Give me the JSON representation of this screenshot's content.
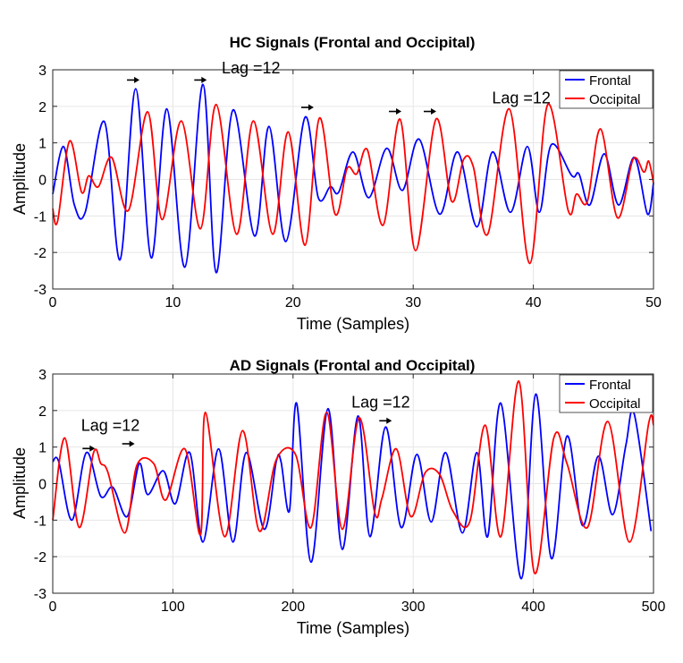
{
  "chart_data": [
    {
      "type": "line",
      "title": "HC Signals (Frontal and Occipital)",
      "xlabel": "Time (Samples)",
      "ylabel": "Amplitude",
      "xlim": [
        0,
        500
      ],
      "ylim": [
        -3,
        3
      ],
      "xticks": [
        0,
        100,
        200,
        300,
        400,
        500
      ],
      "xtick_labels": [
        "0",
        "10",
        "20",
        "30",
        "40",
        "50"
      ],
      "yticks": [
        -3,
        -2,
        -1,
        0,
        1,
        2,
        3
      ],
      "grid": true,
      "legend": "top-right",
      "series": [
        {
          "name": "Frontal",
          "color": "#0000ff",
          "points": [
            [
              0,
              -0.4
            ],
            [
              9,
              0.9
            ],
            [
              18,
              -0.7
            ],
            [
              27,
              -0.9
            ],
            [
              43,
              1.58
            ],
            [
              56,
              -2.2
            ],
            [
              69,
              2.48
            ],
            [
              82,
              -2.15
            ],
            [
              95,
              1.93
            ],
            [
              110,
              -2.4
            ],
            [
              125,
              2.6
            ],
            [
              136,
              -2.55
            ],
            [
              150,
              1.9
            ],
            [
              168,
              -1.55
            ],
            [
              180,
              1.45
            ],
            [
              194,
              -1.7
            ],
            [
              210,
              1.7
            ],
            [
              221,
              -0.5
            ],
            [
              231,
              -0.2
            ],
            [
              238,
              -0.35
            ],
            [
              250,
              0.75
            ],
            [
              263,
              -0.5
            ],
            [
              278,
              0.85
            ],
            [
              291,
              -0.3
            ],
            [
              305,
              1.1
            ],
            [
              322,
              -0.95
            ],
            [
              337,
              0.75
            ],
            [
              353,
              -1.3
            ],
            [
              366,
              0.75
            ],
            [
              381,
              -0.9
            ],
            [
              395,
              0.9
            ],
            [
              405,
              -0.9
            ],
            [
              415,
              0.95
            ],
            [
              432,
              0.1
            ],
            [
              438,
              0.15
            ],
            [
              447,
              -0.7
            ],
            [
              459,
              0.7
            ],
            [
              471,
              -0.7
            ],
            [
              484,
              0.6
            ],
            [
              495,
              -0.95
            ],
            [
              500,
              -0.1
            ]
          ]
        },
        {
          "name": "Occipital",
          "color": "#ff0000",
          "points": [
            [
              0,
              -0.8
            ],
            [
              4,
              -1.15
            ],
            [
              14,
              1.05
            ],
            [
              24,
              -0.35
            ],
            [
              30,
              0.1
            ],
            [
              38,
              -0.2
            ],
            [
              49,
              0.6
            ],
            [
              63,
              -0.85
            ],
            [
              79,
              1.85
            ],
            [
              91,
              -1.1
            ],
            [
              107,
              1.6
            ],
            [
              123,
              -1.35
            ],
            [
              136,
              2.05
            ],
            [
              153,
              -1.5
            ],
            [
              167,
              1.6
            ],
            [
              183,
              -1.5
            ],
            [
              196,
              1.3
            ],
            [
              210,
              -1.8
            ],
            [
              222,
              1.68
            ],
            [
              235,
              -0.95
            ],
            [
              245,
              0.3
            ],
            [
              253,
              0.15
            ],
            [
              262,
              0.8
            ],
            [
              275,
              -1.25
            ],
            [
              289,
              1.65
            ],
            [
              302,
              -1.95
            ],
            [
              319,
              1.65
            ],
            [
              332,
              -0.6
            ],
            [
              342,
              0.55
            ],
            [
              350,
              0.35
            ],
            [
              362,
              -1.5
            ],
            [
              380,
              1.93
            ],
            [
              397,
              -2.3
            ],
            [
              412,
              2.05
            ],
            [
              429,
              -0.85
            ],
            [
              436,
              -0.4
            ],
            [
              445,
              -0.6
            ],
            [
              456,
              1.38
            ],
            [
              470,
              -1.05
            ],
            [
              483,
              0.55
            ],
            [
              492,
              0.2
            ],
            [
              496,
              0.5
            ],
            [
              500,
              -0.1
            ]
          ]
        }
      ],
      "annotations": [
        {
          "text": "Lag =12",
          "x": 165,
          "y": 2.9,
          "arrows": [
            [
              67,
              2.72
            ],
            [
              123,
              2.72
            ]
          ]
        },
        {
          "text": "Lag =12",
          "x": 390,
          "y": 2.08,
          "arrows": [
            [
              212,
              1.97
            ],
            [
              285,
              1.86
            ],
            [
              314,
              1.86
            ]
          ]
        }
      ]
    },
    {
      "type": "line",
      "title": "AD Signals (Frontal and Occipital)",
      "xlabel": "Time (Samples)",
      "ylabel": "Amplitude",
      "xlim": [
        0,
        500
      ],
      "ylim": [
        -3,
        3
      ],
      "xticks": [
        0,
        100,
        200,
        300,
        400,
        500
      ],
      "xtick_labels": [
        "0",
        "100",
        "200",
        "300",
        "400",
        "500"
      ],
      "yticks": [
        -3,
        -2,
        -1,
        0,
        1,
        2,
        3
      ],
      "grid": true,
      "legend": "top-right",
      "series": [
        {
          "name": "Frontal",
          "color": "#0000ff",
          "points": [
            [
              0,
              0.6
            ],
            [
              5,
              0.6
            ],
            [
              16,
              -1.0
            ],
            [
              28,
              0.85
            ],
            [
              40,
              -0.35
            ],
            [
              50,
              -0.1
            ],
            [
              62,
              -0.9
            ],
            [
              72,
              0.55
            ],
            [
              79,
              -0.3
            ],
            [
              92,
              0.35
            ],
            [
              102,
              -0.55
            ],
            [
              114,
              0.85
            ],
            [
              125,
              -1.6
            ],
            [
              138,
              0.95
            ],
            [
              150,
              -1.6
            ],
            [
              161,
              0.85
            ],
            [
              176,
              -1.25
            ],
            [
              186,
              0.6
            ],
            [
              190,
              0.6
            ],
            [
              197,
              -0.75
            ],
            [
              203,
              2.2
            ],
            [
              215,
              -2.15
            ],
            [
              229,
              2.05
            ],
            [
              241,
              -1.8
            ],
            [
              254,
              1.85
            ],
            [
              264,
              -1.45
            ],
            [
              277,
              1.55
            ],
            [
              290,
              -1.2
            ],
            [
              303,
              0.8
            ],
            [
              315,
              -1.05
            ],
            [
              327,
              0.85
            ],
            [
              341,
              -1.35
            ],
            [
              353,
              0.85
            ],
            [
              362,
              -1.45
            ],
            [
              373,
              2.2
            ],
            [
              390,
              -2.6
            ],
            [
              402,
              2.45
            ],
            [
              415,
              -2.05
            ],
            [
              428,
              1.3
            ],
            [
              441,
              -1.15
            ],
            [
              454,
              0.75
            ],
            [
              466,
              -0.85
            ],
            [
              477,
              1.05
            ],
            [
              484,
              1.9
            ],
            [
              498,
              -1.3
            ]
          ]
        },
        {
          "name": "Occipital",
          "color": "#ff0000",
          "points": [
            [
              0,
              -1.0
            ],
            [
              10,
              1.25
            ],
            [
              22,
              -1.2
            ],
            [
              34,
              0.85
            ],
            [
              40,
              0.55
            ],
            [
              46,
              0.3
            ],
            [
              60,
              -1.35
            ],
            [
              70,
              0.5
            ],
            [
              84,
              0.55
            ],
            [
              94,
              -0.45
            ],
            [
              110,
              0.95
            ],
            [
              123,
              -1.4
            ],
            [
              127,
              1.95
            ],
            [
              143,
              -1.45
            ],
            [
              158,
              1.45
            ],
            [
              172,
              -1.3
            ],
            [
              186,
              0.65
            ],
            [
              202,
              0.8
            ],
            [
              215,
              -1.2
            ],
            [
              228,
              1.95
            ],
            [
              241,
              -1.25
            ],
            [
              255,
              1.8
            ],
            [
              268,
              -0.8
            ],
            [
              274,
              -0.4
            ],
            [
              286,
              0.95
            ],
            [
              298,
              -0.9
            ],
            [
              310,
              0.3
            ],
            [
              322,
              0.25
            ],
            [
              333,
              -0.75
            ],
            [
              347,
              -1.05
            ],
            [
              360,
              1.6
            ],
            [
              373,
              -1.45
            ],
            [
              388,
              2.8
            ],
            [
              401,
              -2.45
            ],
            [
              417,
              1.25
            ],
            [
              428,
              0.55
            ],
            [
              445,
              -1.2
            ],
            [
              462,
              1.7
            ],
            [
              480,
              -1.6
            ],
            [
              496,
              1.65
            ],
            [
              500,
              1.6
            ]
          ]
        }
      ],
      "annotations": [
        {
          "text": "Lag =12",
          "x": 48,
          "y": 1.45,
          "arrows": [
            [
              30,
              0.96
            ],
            [
              63,
              1.09
            ]
          ]
        },
        {
          "text": "Lag =12",
          "x": 273,
          "y": 2.08,
          "arrows": [
            [
              277,
              1.72
            ]
          ]
        }
      ]
    }
  ]
}
